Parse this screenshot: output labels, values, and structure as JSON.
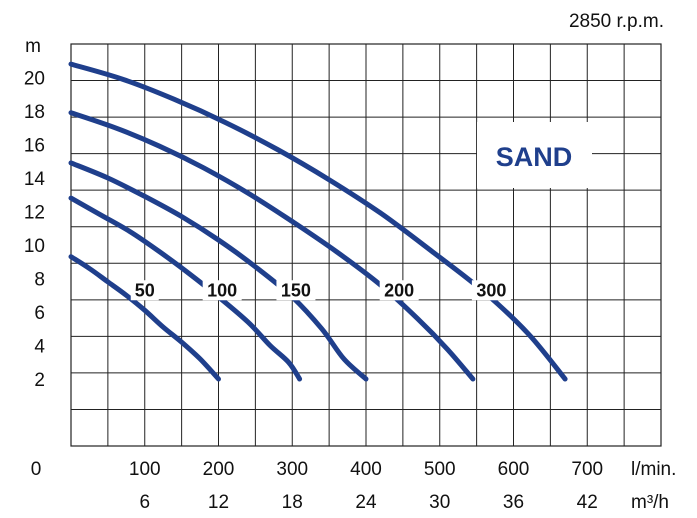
{
  "chart_data": {
    "type": "line",
    "title": "2850 r.p.m.",
    "badge": "SAND",
    "ylabel": "m",
    "x_unit_primary": "l/min.",
    "x_unit_secondary": "m³/h",
    "origin_label": "0",
    "xlim": [
      0,
      800
    ],
    "ylim": [
      -2,
      22
    ],
    "grid": true,
    "y_ticks": [
      "2",
      "4",
      "6",
      "8",
      "10",
      "12",
      "14",
      "16",
      "18",
      "20"
    ],
    "y_tick_values": [
      2,
      4,
      6,
      8,
      10,
      12,
      14,
      16,
      18,
      20
    ],
    "x_ticks_primary": [
      "100",
      "200",
      "300",
      "400",
      "500",
      "600",
      "700"
    ],
    "x_ticks_secondary": [
      "6",
      "12",
      "18",
      "24",
      "30",
      "36",
      "42"
    ],
    "x_tick_values": [
      100,
      200,
      300,
      400,
      500,
      600,
      700
    ],
    "line_color": "#1f3f8c",
    "series": [
      {
        "name": "50",
        "label_at": [
          100,
          7
        ],
        "points": [
          [
            0,
            9.3
          ],
          [
            25,
            8.6
          ],
          [
            50,
            7.8
          ],
          [
            75,
            7.0
          ],
          [
            100,
            6.1
          ],
          [
            125,
            5.1
          ],
          [
            150,
            4.2
          ],
          [
            175,
            3.2
          ],
          [
            200,
            2.0
          ]
        ]
      },
      {
        "name": "100",
        "label_at": [
          205,
          7
        ],
        "points": [
          [
            0,
            12.8
          ],
          [
            40,
            11.8
          ],
          [
            80,
            10.8
          ],
          [
            120,
            9.6
          ],
          [
            160,
            8.3
          ],
          [
            200,
            6.9
          ],
          [
            240,
            5.4
          ],
          [
            270,
            4.0
          ],
          [
            295,
            3.0
          ],
          [
            310,
            2.0
          ]
        ]
      },
      {
        "name": "150",
        "label_at": [
          305,
          7
        ],
        "points": [
          [
            0,
            14.9
          ],
          [
            50,
            14.0
          ],
          [
            100,
            12.9
          ],
          [
            150,
            11.7
          ],
          [
            200,
            10.3
          ],
          [
            250,
            8.7
          ],
          [
            300,
            6.9
          ],
          [
            340,
            5.0
          ],
          [
            370,
            3.2
          ],
          [
            400,
            2.0
          ]
        ]
      },
      {
        "name": "200",
        "label_at": [
          445,
          7
        ],
        "points": [
          [
            0,
            17.9
          ],
          [
            60,
            17.0
          ],
          [
            120,
            15.9
          ],
          [
            180,
            14.6
          ],
          [
            240,
            13.1
          ],
          [
            300,
            11.4
          ],
          [
            360,
            9.6
          ],
          [
            420,
            7.6
          ],
          [
            470,
            5.6
          ],
          [
            510,
            3.8
          ],
          [
            545,
            2.0
          ]
        ]
      },
      {
        "name": "300",
        "label_at": [
          570,
          7
        ],
        "points": [
          [
            0,
            20.8
          ],
          [
            70,
            19.9
          ],
          [
            140,
            18.7
          ],
          [
            210,
            17.3
          ],
          [
            280,
            15.7
          ],
          [
            350,
            13.9
          ],
          [
            420,
            11.9
          ],
          [
            490,
            9.6
          ],
          [
            560,
            7.2
          ],
          [
            620,
            4.7
          ],
          [
            670,
            2.0
          ]
        ]
      }
    ]
  }
}
